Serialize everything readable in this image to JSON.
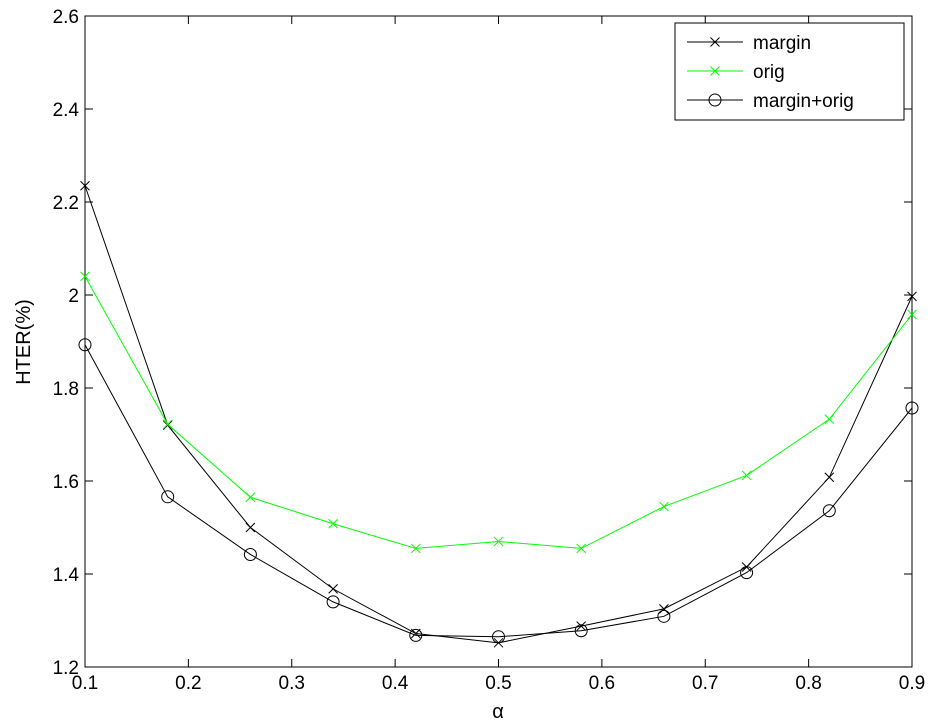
{
  "chart_data": {
    "type": "line",
    "title": "",
    "xlabel": "α",
    "ylabel": "HTER(%)",
    "xlim": [
      0.1,
      0.9
    ],
    "ylim": [
      1.2,
      2.6
    ],
    "xticks": [
      0.1,
      0.2,
      0.3,
      0.4,
      0.5,
      0.6,
      0.7,
      0.8,
      0.9
    ],
    "yticks": [
      1.2,
      1.4,
      1.6,
      1.8,
      2.0,
      2.2,
      2.4,
      2.6
    ],
    "xtick_labels": [
      "0.1",
      "0.2",
      "0.3",
      "0.4",
      "0.5",
      "0.6",
      "0.7",
      "0.8",
      "0.9"
    ],
    "ytick_labels": [
      "1.2",
      "1.4",
      "1.6",
      "1.8",
      "2",
      "2.2",
      "2.4",
      "2.6"
    ],
    "grid": false,
    "legend_position": "top-right",
    "x": [
      0.1,
      0.18,
      0.26,
      0.34,
      0.42,
      0.5,
      0.58,
      0.66,
      0.74,
      0.82,
      0.9
    ],
    "series": [
      {
        "name": "margin",
        "color": "#000000",
        "marker": "x",
        "values": [
          2.235,
          1.72,
          1.5,
          1.368,
          1.272,
          1.252,
          1.288,
          1.325,
          1.415,
          1.608,
          1.997
        ]
      },
      {
        "name": "orig",
        "color": "#00ff00",
        "marker": "x",
        "values": [
          2.04,
          1.722,
          1.565,
          1.508,
          1.455,
          1.47,
          1.455,
          1.545,
          1.612,
          1.733,
          1.958
        ]
      },
      {
        "name": "margin+orig",
        "color": "#000000",
        "marker": "circle",
        "values": [
          1.893,
          1.566,
          1.442,
          1.34,
          1.268,
          1.265,
          1.278,
          1.309,
          1.403,
          1.536,
          1.757
        ]
      }
    ]
  }
}
